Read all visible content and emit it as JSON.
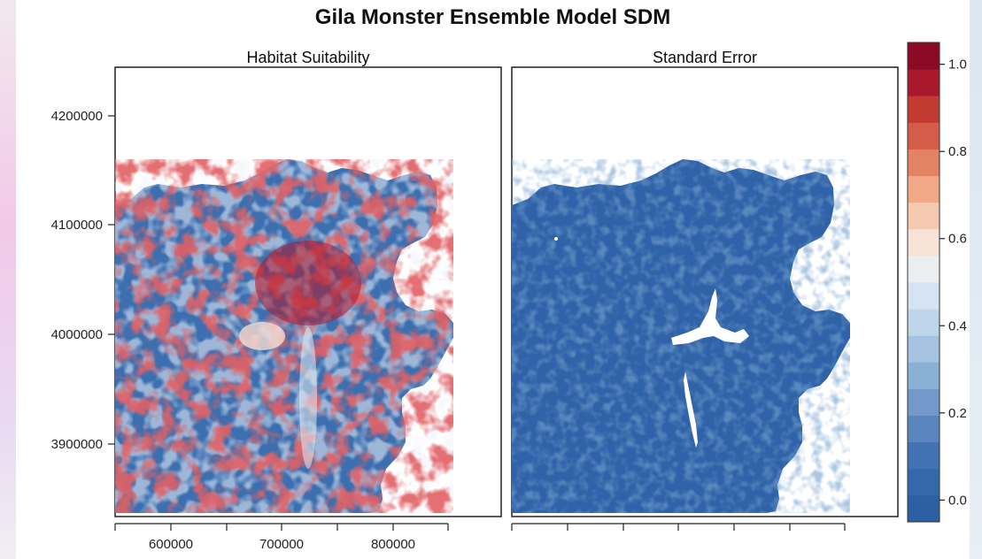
{
  "figure": {
    "title": "Gila Monster Ensemble Model SDM",
    "panels": [
      {
        "title": "Habitat Suitability"
      },
      {
        "title": "Standard Error"
      }
    ]
  },
  "chart_data": {
    "type": "heatmap",
    "title": "Gila Monster Ensemble Model SDM",
    "panels": [
      "Habitat Suitability",
      "Standard Error"
    ],
    "xticks": [
      600000,
      700000,
      800000
    ],
    "xtick_labels": [
      "600000",
      "700000",
      "800000"
    ],
    "yticks": [
      3900000,
      4000000,
      4100000,
      4200000
    ],
    "ytick_labels": [
      "3900000",
      "4000000",
      "4100000",
      "4200000"
    ],
    "xlim": [
      552000,
      902000
    ],
    "ylim": [
      3835000,
      4240000
    ],
    "colorbar": {
      "range": [
        -0.05,
        1.05
      ],
      "ticks": [
        0.0,
        0.2,
        0.4,
        0.6,
        0.8,
        1.0
      ],
      "tick_labels": [
        "0.0",
        "0.2",
        "0.4",
        "0.6",
        "0.8",
        "1.0"
      ],
      "colors": [
        "#2c5fa3",
        "#3568ab",
        "#4372b4",
        "#5a85bf",
        "#7399ca",
        "#8bb0d6",
        "#a5c3e0",
        "#bfd5ea",
        "#d6e3f0",
        "#ebeff2",
        "#f6e2d7",
        "#f6c9b1",
        "#f1a887",
        "#e48264",
        "#d35d48",
        "#c23b33",
        "#a9192b",
        "#8c0a26"
      ]
    },
    "grid": false
  }
}
